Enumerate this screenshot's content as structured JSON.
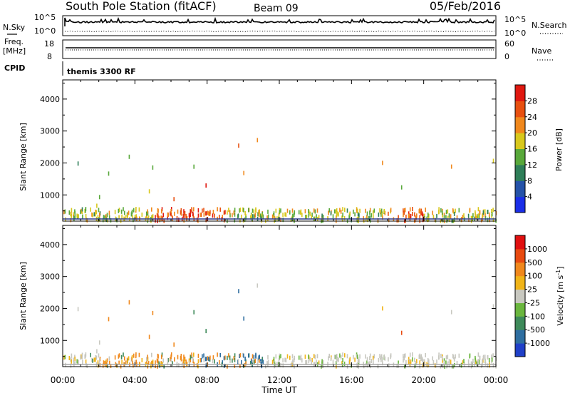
{
  "header": {
    "station": "South Pole Station (fitACF)",
    "beam": "Beam 09",
    "date": "05/Feb/2016"
  },
  "top_panels": {
    "nsky_label": "N.Sky",
    "nsky_ticks": [
      "10^5",
      "10^0"
    ],
    "nsearch_label": "N.Search",
    "nsearch_ticks": [
      "10^5",
      "10^0"
    ],
    "freq_label_1": "Freq.",
    "freq_label_2": "[MHz]",
    "freq_ticks": [
      "18",
      "8"
    ],
    "nave_label": "Nave",
    "nave_ticks": [
      "60",
      "0"
    ],
    "cpid_label": "CPID",
    "cpid_text": "themis 3300 RF"
  },
  "chart_data": [
    {
      "type": "heatmap",
      "name": "power-panel",
      "ylabel": "Slant Range [km]",
      "ylim": [
        180,
        4600
      ],
      "yticks": [
        "1000",
        "2000",
        "3000",
        "4000"
      ],
      "x_ticks": [
        "00:00",
        "04:00",
        "08:00",
        "12:00",
        "16:00",
        "20:00",
        "00:00"
      ],
      "colorbar": {
        "label": "Power [dB]",
        "ticks": [
          "4",
          "8",
          "12",
          "16",
          "20",
          "24",
          "28"
        ],
        "colors": [
          "#1a2ee8",
          "#2552a8",
          "#2e7e58",
          "#58a83a",
          "#d8c81c",
          "#f0881c",
          "#e85010",
          "#e01810"
        ]
      }
    },
    {
      "type": "heatmap",
      "name": "velocity-panel",
      "ylabel": "Slant Range [km]",
      "ylim": [
        180,
        4600
      ],
      "yticks": [
        "1000",
        "2000",
        "3000",
        "4000"
      ],
      "x_ticks": [
        "00:00",
        "04:00",
        "08:00",
        "12:00",
        "16:00",
        "20:00",
        "00:00"
      ],
      "xlabel": "Time UT",
      "colorbar": {
        "label": "Velocity [m s",
        "label_sup": "-1",
        "label_end": "]",
        "ticks": [
          "1000",
          "500",
          "100",
          "25",
          "-25",
          "-100",
          "-500",
          "-1000"
        ],
        "colors": [
          "#2040c8",
          "#2e6ea0",
          "#3e8a5a",
          "#6ab63e",
          "#c8c8c0",
          "#f0b418",
          "#f0881c",
          "#e84a10",
          "#e01010"
        ]
      }
    }
  ]
}
